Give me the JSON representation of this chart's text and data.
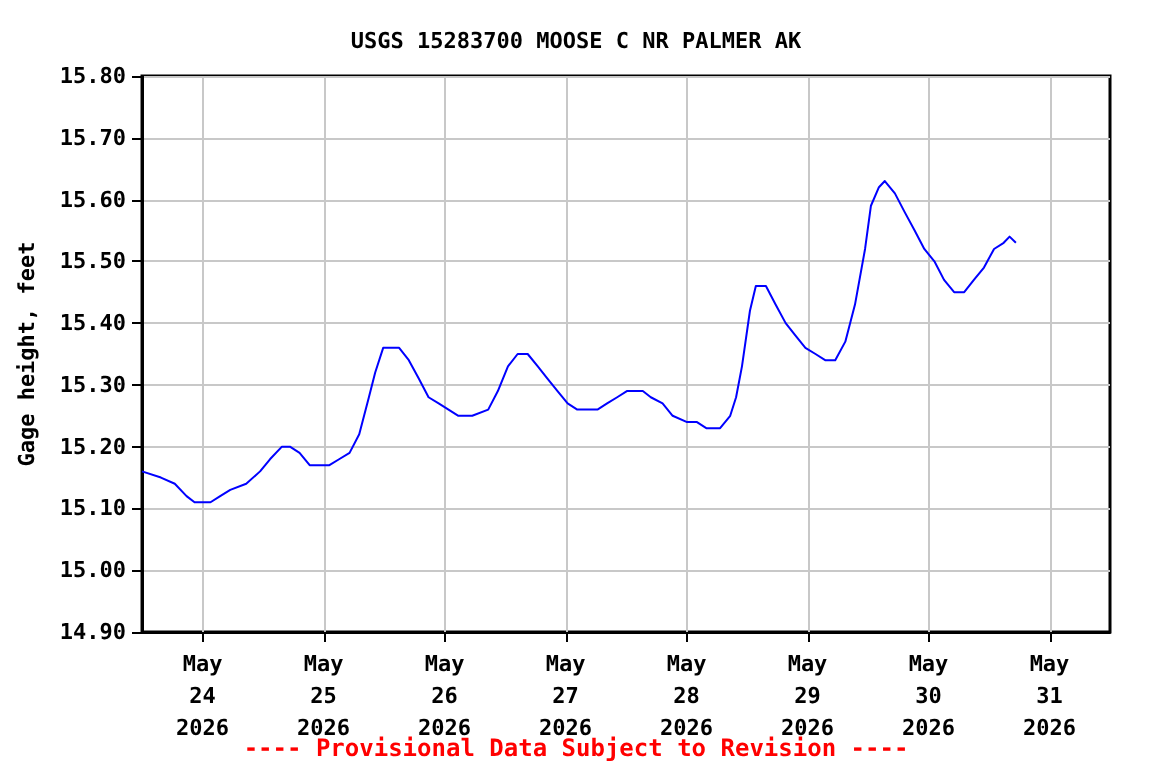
{
  "chart_data": {
    "type": "line",
    "title": "USGS 15283700 MOOSE C NR PALMER AK",
    "ylabel": "Gage height, feet",
    "annotations": [
      "---- Provisional Data Subject to Revision ----"
    ],
    "xlim": [
      "2026-05-23T12:00",
      "2026-05-31T12:00"
    ],
    "xticks": [
      {
        "value": "2026-05-24",
        "label": "May\n24\n2026"
      },
      {
        "value": "2026-05-25",
        "label": "May\n25\n2026"
      },
      {
        "value": "2026-05-26",
        "label": "May\n26\n2026"
      },
      {
        "value": "2026-05-27",
        "label": "May\n27\n2026"
      },
      {
        "value": "2026-05-28",
        "label": "May\n28\n2026"
      },
      {
        "value": "2026-05-29",
        "label": "May\n29\n2026"
      },
      {
        "value": "2026-05-30",
        "label": "May\n30\n2026"
      },
      {
        "value": "2026-05-31",
        "label": "May\n31\n2026"
      }
    ],
    "ylim": [
      14.9,
      15.8
    ],
    "yticks": [
      {
        "value": 14.9,
        "label": "14.90"
      },
      {
        "value": 15.0,
        "label": "15.00"
      },
      {
        "value": 15.1,
        "label": "15.10"
      },
      {
        "value": 15.2,
        "label": "15.20"
      },
      {
        "value": 15.3,
        "label": "15.30"
      },
      {
        "value": 15.4,
        "label": "15.40"
      },
      {
        "value": 15.5,
        "label": "15.50"
      },
      {
        "value": 15.6,
        "label": "15.60"
      },
      {
        "value": 15.7,
        "label": "15.70"
      },
      {
        "value": 15.8,
        "label": "15.80"
      }
    ],
    "grid": true,
    "marker": "none",
    "line_style": "solid",
    "series": [
      {
        "color": "#0000ff",
        "x": [
          "2026-05-23T12:00",
          "2026-05-23T15:45",
          "2026-05-23T18:30",
          "2026-05-23T20:50",
          "2026-05-23T22:25",
          "2026-05-24T01:35",
          "2026-05-24T03:30",
          "2026-05-24T05:30",
          "2026-05-24T08:40",
          "2026-05-24T11:25",
          "2026-05-24T13:25",
          "2026-05-24T15:45",
          "2026-05-24T17:20",
          "2026-05-24T19:15",
          "2026-05-24T21:15",
          "2026-05-25T01:10",
          "2026-05-25T03:10",
          "2026-05-25T05:10",
          "2026-05-25T07:05",
          "2026-05-25T09:00",
          "2026-05-25T10:15",
          "2026-05-25T11:50",
          "2026-05-25T15:00",
          "2026-05-25T16:55",
          "2026-05-25T18:55",
          "2026-05-25T20:50",
          "2026-05-25T22:50",
          "2026-05-26T02:45",
          "2026-05-26T05:30",
          "2026-05-26T08:40",
          "2026-05-26T10:35",
          "2026-05-26T12:35",
          "2026-05-26T14:30",
          "2026-05-26T16:30",
          "2026-05-26T18:30",
          "2026-05-26T20:25",
          "2026-05-26T22:25",
          "2026-05-27T00:25",
          "2026-05-27T02:20",
          "2026-05-27T06:20",
          "2026-05-27T08:15",
          "2026-05-27T10:15",
          "2026-05-27T12:10",
          "2026-05-27T15:20",
          "2026-05-27T16:55",
          "2026-05-27T19:15",
          "2026-05-27T21:15",
          "2026-05-28T00:00",
          "2026-05-28T02:00",
          "2026-05-28T03:55",
          "2026-05-28T06:40",
          "2026-05-28T08:40",
          "2026-05-28T09:50",
          "2026-05-28T11:00",
          "2026-05-28T12:35",
          "2026-05-28T13:45",
          "2026-05-28T15:45",
          "2026-05-28T17:40",
          "2026-05-28T19:40",
          "2026-05-28T21:35",
          "2026-05-28T23:35",
          "2026-05-29T01:35",
          "2026-05-29T03:30",
          "2026-05-29T05:30",
          "2026-05-29T07:30",
          "2026-05-29T09:25",
          "2026-05-29T11:25",
          "2026-05-29T12:35",
          "2026-05-29T14:10",
          "2026-05-29T15:20",
          "2026-05-29T17:20",
          "2026-05-29T19:15",
          "2026-05-29T21:15",
          "2026-05-29T23:10",
          "2026-05-30T01:10",
          "2026-05-30T03:05",
          "2026-05-30T05:05",
          "2026-05-30T07:05",
          "2026-05-30T09:00",
          "2026-05-30T11:00",
          "2026-05-30T13:00",
          "2026-05-30T14:55",
          "2026-05-30T16:05",
          "2026-05-30T17:20"
        ],
        "values": [
          15.16,
          15.15,
          15.14,
          15.12,
          15.11,
          15.11,
          15.12,
          15.13,
          15.14,
          15.16,
          15.18,
          15.2,
          15.2,
          15.19,
          15.17,
          15.17,
          15.18,
          15.19,
          15.22,
          15.28,
          15.32,
          15.36,
          15.36,
          15.34,
          15.31,
          15.28,
          15.27,
          15.25,
          15.25,
          15.26,
          15.29,
          15.33,
          15.35,
          15.35,
          15.33,
          15.31,
          15.29,
          15.27,
          15.26,
          15.26,
          15.27,
          15.28,
          15.29,
          15.29,
          15.28,
          15.27,
          15.25,
          15.24,
          15.24,
          15.23,
          15.23,
          15.25,
          15.28,
          15.33,
          15.42,
          15.46,
          15.46,
          15.43,
          15.4,
          15.38,
          15.36,
          15.35,
          15.34,
          15.34,
          15.37,
          15.43,
          15.52,
          15.59,
          15.62,
          15.63,
          15.61,
          15.58,
          15.55,
          15.52,
          15.5,
          15.47,
          15.45,
          15.45,
          15.47,
          15.49,
          15.52,
          15.53,
          15.54,
          15.53
        ]
      }
    ]
  }
}
